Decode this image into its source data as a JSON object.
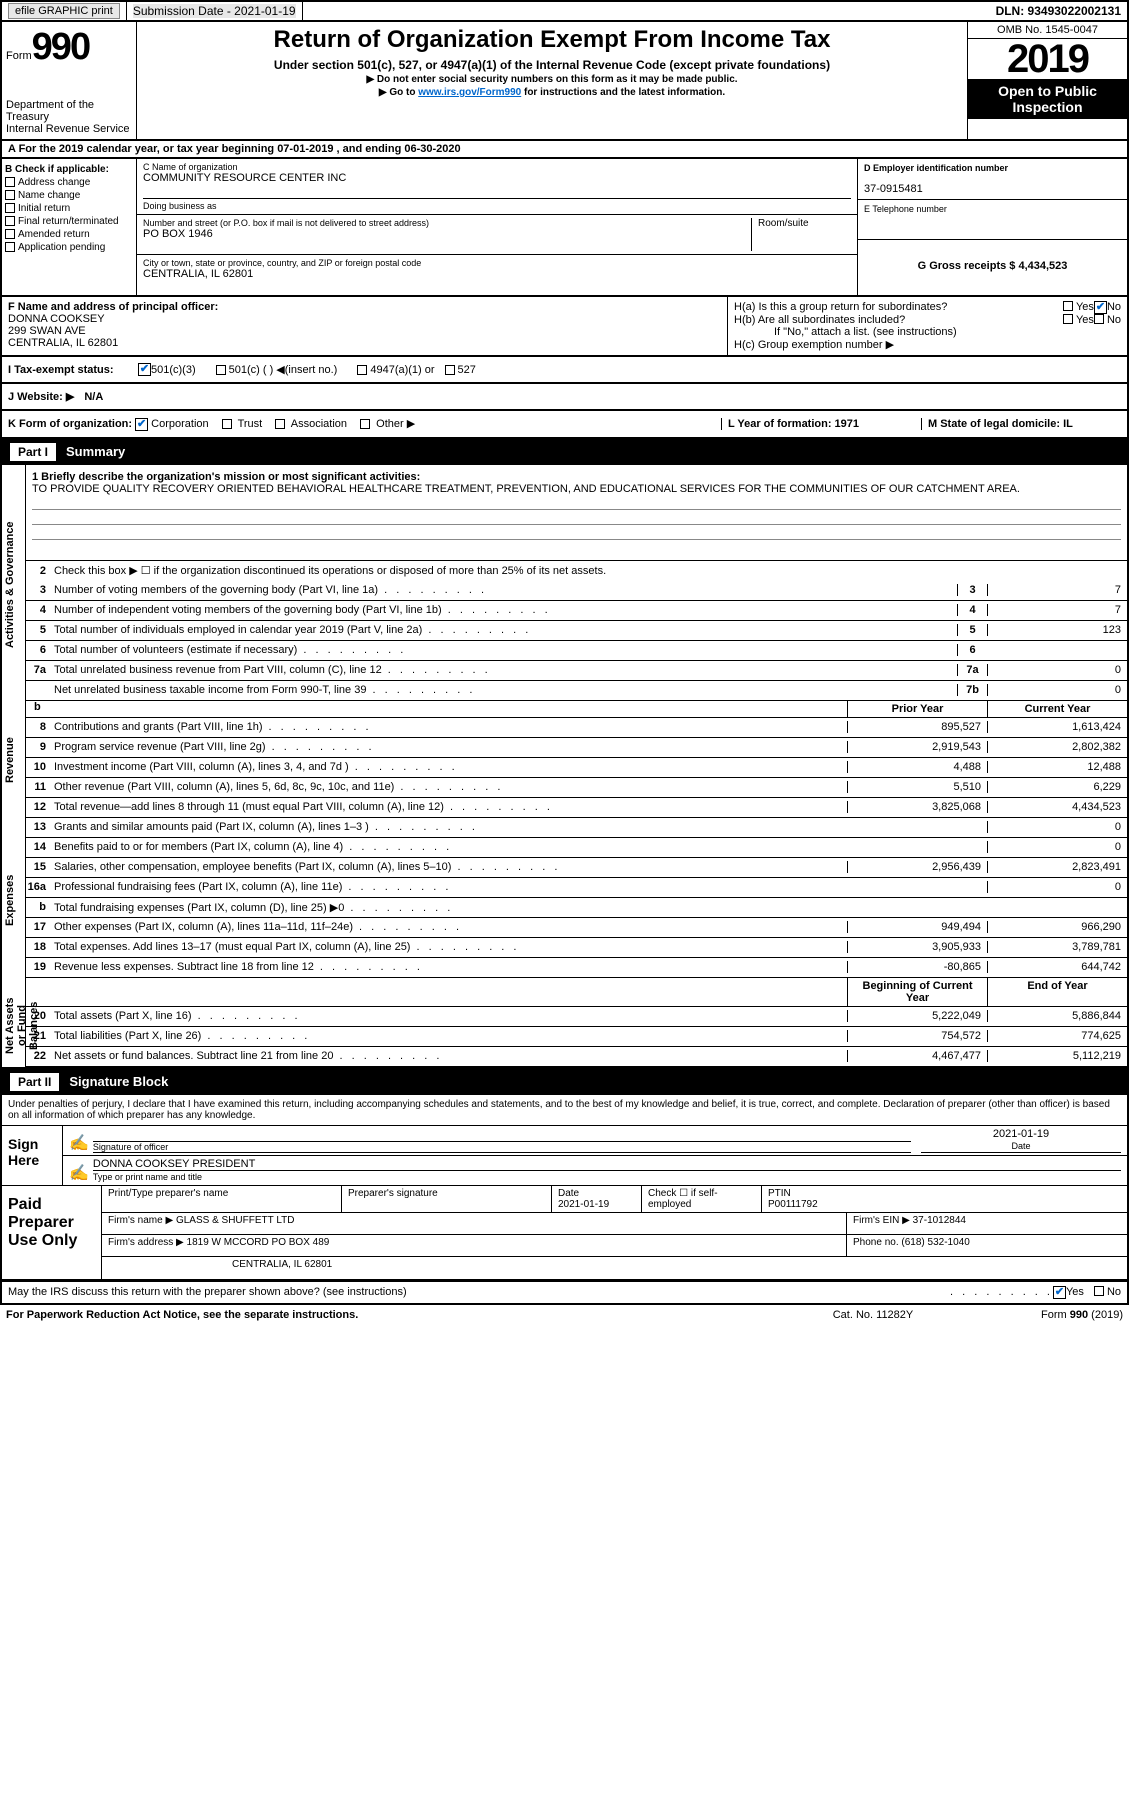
{
  "top": {
    "efile": "efile GRAPHIC print",
    "sub_date_label": "Submission Date - 2021-01-19",
    "dln": "DLN: 93493022002131"
  },
  "header": {
    "form_label": "Form",
    "form_num": "990",
    "dept": "Department of the Treasury\nInternal Revenue Service",
    "title": "Return of Organization Exempt From Income Tax",
    "sub1": "Under section 501(c), 527, or 4947(a)(1) of the Internal Revenue Code (except private foundations)",
    "sub2": "▶ Do not enter social security numbers on this form as it may be made public.",
    "sub3_pre": "▶ Go to ",
    "sub3_link": "www.irs.gov/Form990",
    "sub3_post": " for instructions and the latest information.",
    "omb": "OMB No. 1545-0047",
    "year": "2019",
    "open": "Open to Public Inspection"
  },
  "period": "A For the 2019 calendar year, or tax year beginning 07-01-2019    , and ending 06-30-2020",
  "box_b": {
    "label": "B Check if applicable:",
    "items": [
      "Address change",
      "Name change",
      "Initial return",
      "Final return/terminated",
      "Amended return",
      "Application pending"
    ]
  },
  "org": {
    "name_label": "C Name of organization",
    "name": "COMMUNITY RESOURCE CENTER INC",
    "dba_label": "Doing business as",
    "addr_label": "Number and street (or P.O. box if mail is not delivered to street address)",
    "addr": "PO BOX 1946",
    "room_label": "Room/suite",
    "city_label": "City or town, state or province, country, and ZIP or foreign postal code",
    "city": "CENTRALIA, IL  62801"
  },
  "right_info": {
    "ein_label": "D Employer identification number",
    "ein": "37-0915481",
    "phone_label": "E Telephone number",
    "gross_label": "G Gross receipts $ 4,434,523"
  },
  "officer": {
    "label": "F   Name and address of principal officer:",
    "name": "DONNA COOKSEY",
    "addr1": "299 SWAN AVE",
    "addr2": "CENTRALIA, IL   62801",
    "h_a": "H(a)   Is this a group return for subordinates?",
    "h_b": "H(b)   Are all subordinates included?",
    "h_note": "If \"No,\" attach a list. (see instructions)",
    "h_c": "H(c)   Group exemption number ▶",
    "yes": "Yes",
    "no": "No"
  },
  "status": {
    "label": "I    Tax-exempt status:",
    "opts": [
      "501(c)(3)",
      "501(c) (  ) ◀(insert no.)",
      "4947(a)(1) or",
      "527"
    ]
  },
  "website": {
    "label": "J   Website: ▶",
    "val": "N/A"
  },
  "form_org": {
    "k": "K Form of organization:",
    "opts": [
      "Corporation",
      "Trust",
      "Association",
      "Other ▶"
    ],
    "l": "L Year of formation: 1971",
    "m": "M State of legal domicile: IL"
  },
  "part1": {
    "num": "Part I",
    "title": "Summary"
  },
  "mission": {
    "label": "1   Briefly describe the organization's mission or most significant activities:",
    "text": "TO PROVIDE QUALITY RECOVERY ORIENTED BEHAVIORAL HEALTHCARE TREATMENT, PREVENTION, AND EDUCATIONAL SERVICES FOR THE COMMUNITIES OF OUR CATCHMENT AREA."
  },
  "sections": {
    "activities": "Activities & Governance",
    "revenue": "Revenue",
    "expenses": "Expenses",
    "net": "Net Assets or Fund Balances"
  },
  "lines_top": [
    {
      "n": "2",
      "t": "Check this box ▶ ☐ if the organization discontinued its operations or disposed of more than 25% of its net assets."
    },
    {
      "n": "3",
      "t": "Number of voting members of the governing body (Part VI, line 1a)",
      "box": "3",
      "v": "7"
    },
    {
      "n": "4",
      "t": "Number of independent voting members of the governing body (Part VI, line 1b)",
      "box": "4",
      "v": "7"
    },
    {
      "n": "5",
      "t": "Total number of individuals employed in calendar year 2019 (Part V, line 2a)",
      "box": "5",
      "v": "123"
    },
    {
      "n": "6",
      "t": "Total number of volunteers (estimate if necessary)",
      "box": "6",
      "v": ""
    },
    {
      "n": "7a",
      "t": "Total unrelated business revenue from Part VIII, column (C), line 12",
      "box": "7a",
      "v": "0"
    },
    {
      "n": "",
      "t": "Net unrelated business taxable income from Form 990-T, line 39",
      "box": "7b",
      "v": "0"
    }
  ],
  "col_hdr": {
    "prior": "Prior Year",
    "current": "Current Year",
    "begin": "Beginning of Current Year",
    "end": "End of Year"
  },
  "rev_lines": [
    {
      "n": "8",
      "t": "Contributions and grants (Part VIII, line 1h)",
      "p": "895,527",
      "c": "1,613,424"
    },
    {
      "n": "9",
      "t": "Program service revenue (Part VIII, line 2g)",
      "p": "2,919,543",
      "c": "2,802,382"
    },
    {
      "n": "10",
      "t": "Investment income (Part VIII, column (A), lines 3, 4, and 7d )",
      "p": "4,488",
      "c": "12,488"
    },
    {
      "n": "11",
      "t": "Other revenue (Part VIII, column (A), lines 5, 6d, 8c, 9c, 10c, and 11e)",
      "p": "5,510",
      "c": "6,229"
    },
    {
      "n": "12",
      "t": "Total revenue—add lines 8 through 11 (must equal Part VIII, column (A), line 12)",
      "p": "3,825,068",
      "c": "4,434,523"
    }
  ],
  "exp_lines": [
    {
      "n": "13",
      "t": "Grants and similar amounts paid (Part IX, column (A), lines 1–3 )",
      "p": "",
      "c": "0"
    },
    {
      "n": "14",
      "t": "Benefits paid to or for members (Part IX, column (A), line 4)",
      "p": "",
      "c": "0"
    },
    {
      "n": "15",
      "t": "Salaries, other compensation, employee benefits (Part IX, column (A), lines 5–10)",
      "p": "2,956,439",
      "c": "2,823,491"
    },
    {
      "n": "16a",
      "t": "Professional fundraising fees (Part IX, column (A), line 11e)",
      "p": "",
      "c": "0"
    },
    {
      "n": "b",
      "t": "Total fundraising expenses (Part IX, column (D), line 25) ▶0",
      "p": "gray",
      "c": "gray"
    },
    {
      "n": "17",
      "t": "Other expenses (Part IX, column (A), lines 11a–11d, 11f–24e)",
      "p": "949,494",
      "c": "966,290"
    },
    {
      "n": "18",
      "t": "Total expenses. Add lines 13–17 (must equal Part IX, column (A), line 25)",
      "p": "3,905,933",
      "c": "3,789,781"
    },
    {
      "n": "19",
      "t": "Revenue less expenses. Subtract line 18 from line 12",
      "p": "-80,865",
      "c": "644,742"
    }
  ],
  "net_lines": [
    {
      "n": "20",
      "t": "Total assets (Part X, line 16)",
      "p": "5,222,049",
      "c": "5,886,844"
    },
    {
      "n": "21",
      "t": "Total liabilities (Part X, line 26)",
      "p": "754,572",
      "c": "774,625"
    },
    {
      "n": "22",
      "t": "Net assets or fund balances. Subtract line 21 from line 20",
      "p": "4,467,477",
      "c": "5,112,219"
    }
  ],
  "part2": {
    "num": "Part II",
    "title": "Signature Block"
  },
  "penalty": "Under penalties of perjury, I declare that I have examined this return, including accompanying schedules and statements, and to the best of my knowledge and belief, it is true, correct, and complete. Declaration of preparer (other than officer) is based on all information of which preparer has any knowledge.",
  "sign": {
    "label": "Sign Here",
    "sig_officer": "Signature of officer",
    "date": "2021-01-19",
    "date_label": "Date",
    "name_title": "DONNA COOKSEY  PRESIDENT",
    "name_label": "Type or print name and title"
  },
  "paid": {
    "label": "Paid Preparer Use Only",
    "print_name": "Print/Type preparer's name",
    "prep_sig": "Preparer's signature",
    "date_label": "Date",
    "date": "2021-01-19",
    "check_label": "Check ☐ if self-employed",
    "ptin_label": "PTIN",
    "ptin": "P00111792",
    "firm_name_label": "Firm's name     ▶",
    "firm_name": "GLASS & SHUFFETT LTD",
    "firm_ein_label": "Firm's EIN ▶",
    "firm_ein": "37-1012844",
    "firm_addr_label": "Firm's address ▶",
    "firm_addr": "1819 W MCCORD PO BOX 489",
    "firm_city": "CENTRALIA, IL   62801",
    "phone_label": "Phone no.",
    "phone": "(618) 532-1040"
  },
  "discuss": "May the IRS discuss this return with the preparer shown above? (see instructions)",
  "footer": {
    "left": "For Paperwork Reduction Act Notice, see the separate instructions.",
    "mid": "Cat. No. 11282Y",
    "right": "Form 990 (2019)"
  }
}
